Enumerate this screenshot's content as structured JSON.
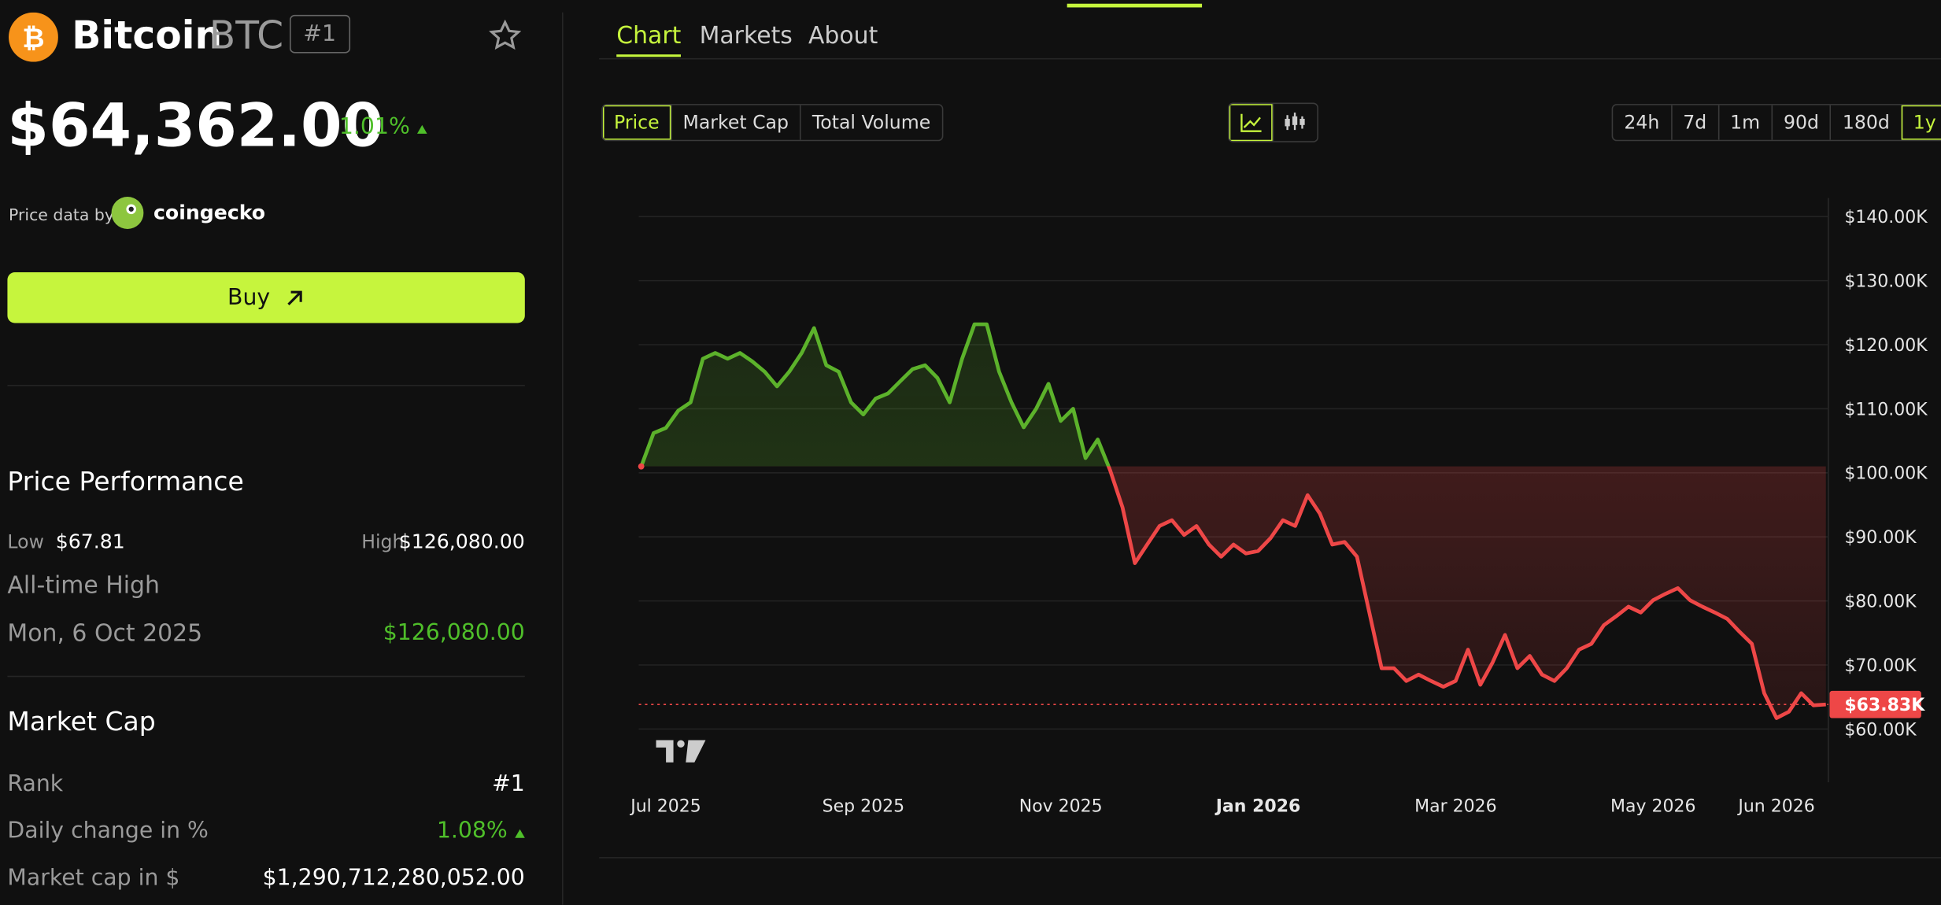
{
  "header": {
    "name": "Bitcoin",
    "symbol": "BTC",
    "rank": "#1",
    "price": "$64,362.00",
    "change": "1.01%",
    "price_data_by": "Price data by",
    "provider": "coingecko",
    "buy": "Buy"
  },
  "performance": {
    "title": "Price Performance",
    "low_label": "Low",
    "low": "$67.81",
    "high_label": "High",
    "high": "$126,080.00",
    "ath_label": "All-time High",
    "ath_date": "Mon, 6 Oct 2025",
    "ath_value": "$126,080.00"
  },
  "market_cap": {
    "title": "Market Cap",
    "rank_label": "Rank",
    "rank": "#1",
    "daily_label": "Daily change in %",
    "daily": "1.08%",
    "cap_label": "Market cap in $",
    "cap": "$1,290,712,280,052.00"
  },
  "tabs": [
    "Chart",
    "Markets",
    "About"
  ],
  "metrics": [
    "Price",
    "Market Cap",
    "Total Volume"
  ],
  "ranges": [
    "24h",
    "7d",
    "1m",
    "90d",
    "180d",
    "1y"
  ],
  "chart_data": {
    "type": "line",
    "categories": [
      null,
      null,
      "Jul 2025",
      null,
      null,
      null,
      null,
      null,
      null,
      null,
      null,
      null,
      null,
      null,
      null,
      null,
      null,
      null,
      "Sep 2025",
      null,
      null,
      null,
      null,
      null,
      null,
      null,
      null,
      null,
      null,
      null,
      null,
      null,
      null,
      null,
      "Nov 2025",
      null,
      null,
      null,
      null,
      null,
      null,
      null,
      null,
      null,
      null,
      null,
      null,
      null,
      null,
      null,
      "Jan 2026",
      null,
      null,
      null,
      null,
      null,
      null,
      null,
      null,
      null,
      null,
      null,
      null,
      null,
      null,
      null,
      "Mar 2026",
      null,
      null,
      null,
      null,
      null,
      null,
      null,
      null,
      null,
      null,
      null,
      null,
      null,
      null,
      null,
      "May 2026",
      null,
      null,
      null,
      null,
      null,
      null,
      null,
      null,
      null,
      "Jun 2026",
      null,
      null,
      null,
      null
    ],
    "values": [
      101000,
      106200,
      107000,
      109700,
      111000,
      117800,
      118700,
      117800,
      118700,
      117400,
      115800,
      113500,
      115800,
      118700,
      122600,
      116800,
      115800,
      111000,
      109100,
      111600,
      112400,
      114300,
      116200,
      116800,
      114800,
      111000,
      117800,
      123200,
      123200,
      115800,
      111000,
      107100,
      110000,
      113900,
      108100,
      110000,
      102300,
      105200,
      100400,
      94600,
      85900,
      88800,
      91700,
      92600,
      90300,
      91700,
      88800,
      86900,
      88800,
      87400,
      87800,
      89800,
      92600,
      91700,
      96500,
      93600,
      88800,
      89200,
      86900,
      78200,
      69500,
      69500,
      67500,
      68500,
      67500,
      66600,
      67500,
      72400,
      66900,
      70400,
      74700,
      69500,
      71400,
      68500,
      67500,
      69500,
      72400,
      73300,
      76200,
      77600,
      79100,
      78200,
      80100,
      81100,
      82000,
      80100,
      79100,
      78200,
      77200,
      75200,
      73300,
      65600,
      61700,
      62700,
      65600,
      63700,
      63830
    ],
    "up_color": "#5cb22b",
    "down_color": "#ee4747",
    "ylim": [
      51700,
      142900
    ],
    "yticks": [
      {
        "value": 60000,
        "label": "$60.00K"
      },
      {
        "value": 70000,
        "label": "$70.00K"
      },
      {
        "value": 80000,
        "label": "$80.00K"
      },
      {
        "value": 90000,
        "label": "$90.00K"
      },
      {
        "value": 100000,
        "label": "$100.00K"
      },
      {
        "value": 110000,
        "label": "$110.00K"
      },
      {
        "value": 120000,
        "label": "$120.00K"
      },
      {
        "value": 130000,
        "label": "$130.00K"
      },
      {
        "value": 140000,
        "label": "$140.00K"
      }
    ],
    "last_price": {
      "value": 63830,
      "label": "$63.83K"
    },
    "grid": true
  }
}
